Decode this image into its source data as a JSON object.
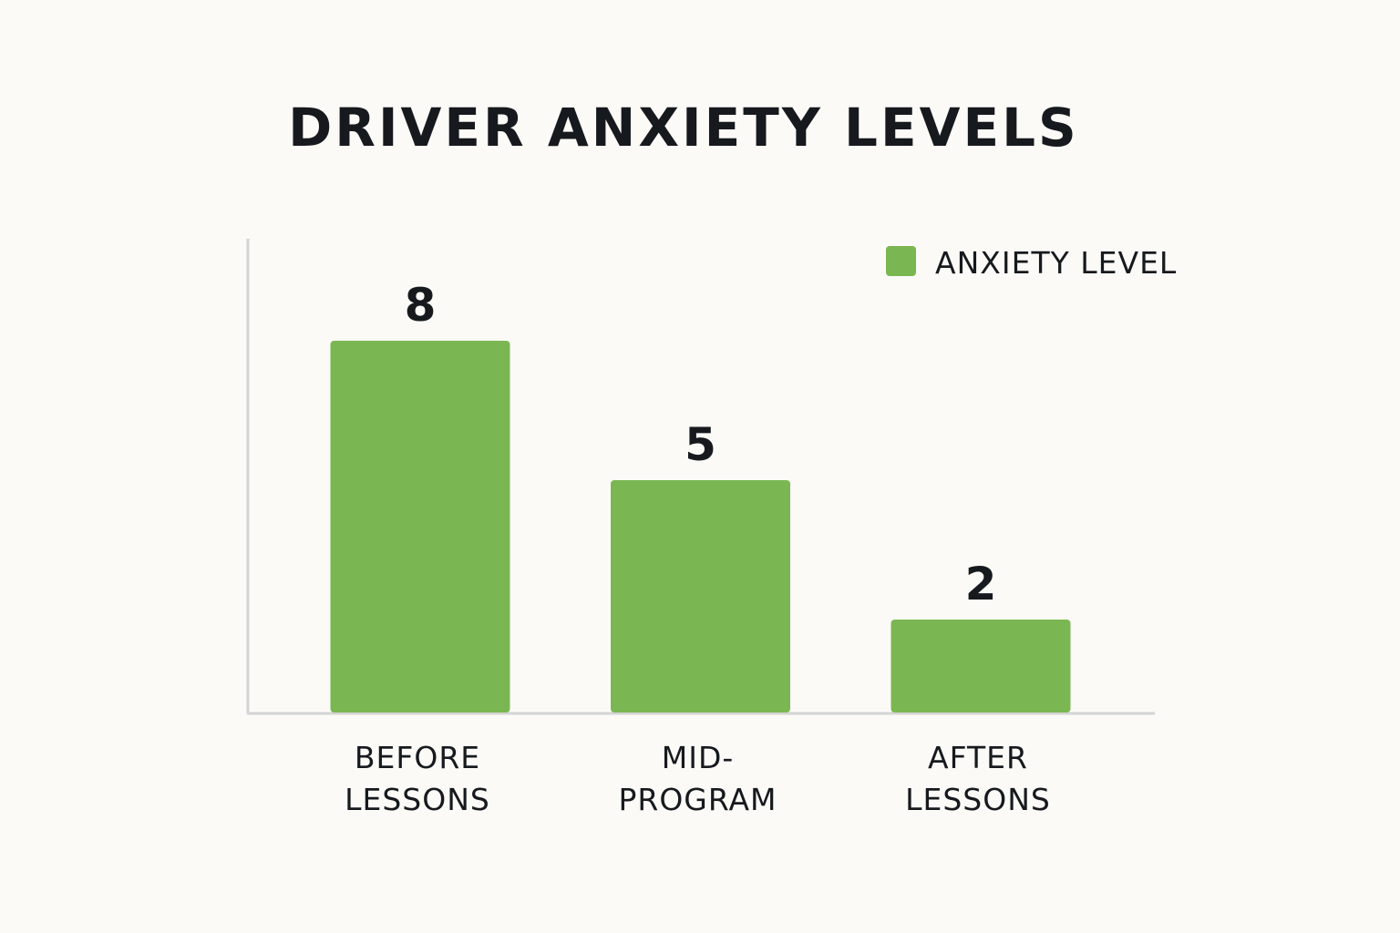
{
  "chart_data": {
    "type": "bar",
    "title": "DRIVER ANXIETY LEVELS",
    "categories": [
      [
        "BEFORE",
        "LESSONS"
      ],
      [
        "MID-",
        "PROGRAM"
      ],
      [
        "AFTER",
        "LESSONS"
      ]
    ],
    "series": [
      {
        "name": "ANXIETY LEVEL",
        "values": [
          8,
          5,
          2
        ],
        "color": "#7ab752"
      }
    ],
    "data_labels": [
      "8",
      "5",
      "2"
    ],
    "ylim": [
      0,
      10
    ],
    "grid": false,
    "legend_position": "top-right",
    "axis_color": "#d4d4d4"
  }
}
